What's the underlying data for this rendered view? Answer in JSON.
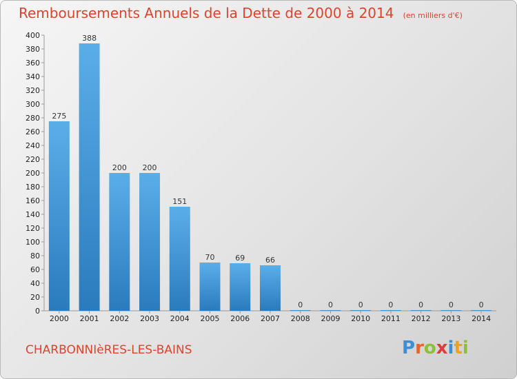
{
  "header": {
    "title": "Remboursements Annuels de la Dette de 2000 à 2014",
    "subtitle": "(en milliers d'€)"
  },
  "commune": "CHARBONNIèRES-LES-BAINS",
  "logo": {
    "text": "Proxiti",
    "letters": [
      {
        "char": "P",
        "color": "#3b8fd4"
      },
      {
        "char": "r",
        "color": "#e8622c"
      },
      {
        "char": "o",
        "color": "#8dbf3a"
      },
      {
        "char": "x",
        "color": "#e03a3a"
      },
      {
        "char": "i",
        "color": "#3b8fd4"
      },
      {
        "char": "t",
        "color": "#f0a020"
      },
      {
        "char": "i",
        "color": "#8dbf3a"
      }
    ]
  },
  "chart_data": {
    "type": "bar",
    "title": "Remboursements Annuels de la Dette de 2000 à 2014",
    "subtitle": "(en milliers d'€)",
    "categories": [
      "2000",
      "2001",
      "2002",
      "2003",
      "2004",
      "2005",
      "2006",
      "2007",
      "2008",
      "2009",
      "2010",
      "2011",
      "2012",
      "2013",
      "2014"
    ],
    "values": [
      275,
      388,
      200,
      200,
      151,
      70,
      69,
      66,
      0,
      0,
      0,
      0,
      0,
      0,
      0
    ],
    "ylim": [
      0,
      400
    ],
    "yticks": [
      0,
      20,
      40,
      60,
      80,
      100,
      120,
      140,
      160,
      180,
      200,
      220,
      240,
      260,
      280,
      300,
      320,
      340,
      360,
      380,
      400
    ],
    "grid": false,
    "legend": "none",
    "bar_color_top": "#5aaee8",
    "bar_color_bottom": "#2a7bbd"
  }
}
